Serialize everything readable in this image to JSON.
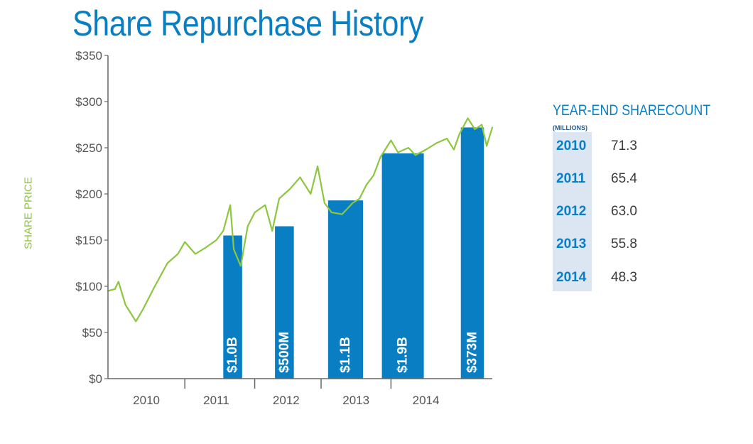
{
  "title": "Share Repurchase History",
  "y_axis_label": "SHARE PRICE",
  "colors": {
    "title": "#0a7ec2",
    "bar": "#0a7ec2",
    "line": "#8dc63f",
    "axis": "#666666",
    "panel_bg": "#dbe6f2"
  },
  "chart_data": {
    "type": "bar+line",
    "title": "Share Repurchase History",
    "ylabel": "SHARE PRICE",
    "ylim": [
      0,
      350
    ],
    "yticks": [
      "$0",
      "$50",
      "$100",
      "$150",
      "$200",
      "$250",
      "$300",
      "$350"
    ],
    "ytick_values": [
      0,
      50,
      100,
      150,
      200,
      250,
      300,
      350
    ],
    "xlim": [
      2009.45,
      2014.95
    ],
    "x_tick_labels": [
      "2010",
      "2011",
      "2012",
      "2013",
      "2014"
    ],
    "x_label_positions": [
      2010.0,
      2011.0,
      2012.0,
      2013.0,
      2014.0
    ],
    "x_dividers": [
      2010.55,
      2011.55,
      2012.5,
      2013.5
    ],
    "bars": [
      {
        "label": "$1.0B",
        "x_start": 2011.1,
        "x_end": 2011.37,
        "value": 155
      },
      {
        "label": "$500M",
        "x_start": 2011.84,
        "x_end": 2012.11,
        "value": 165
      },
      {
        "label": "$1.1B",
        "x_start": 2012.6,
        "x_end": 2013.1,
        "value": 193
      },
      {
        "label": "$1.9B",
        "x_start": 2013.37,
        "x_end": 2013.97,
        "value": 244
      },
      {
        "label": "$373M",
        "x_start": 2014.5,
        "x_end": 2014.83,
        "value": 272
      }
    ],
    "series": [
      {
        "name": "Share price",
        "x": [
          2009.45,
          2009.55,
          2009.6,
          2009.7,
          2009.85,
          2009.95,
          2010.1,
          2010.3,
          2010.45,
          2010.55,
          2010.7,
          2010.85,
          2011.0,
          2011.1,
          2011.2,
          2011.25,
          2011.35,
          2011.45,
          2011.55,
          2011.7,
          2011.8,
          2011.9,
          2012.05,
          2012.2,
          2012.35,
          2012.45,
          2012.55,
          2012.65,
          2012.8,
          2012.95,
          2013.05,
          2013.15,
          2013.25,
          2013.35,
          2013.5,
          2013.6,
          2013.75,
          2013.85,
          2014.0,
          2014.15,
          2014.3,
          2014.4,
          2014.48,
          2014.6,
          2014.7,
          2014.8,
          2014.87,
          2014.95
        ],
        "y": [
          95,
          97,
          105,
          80,
          62,
          75,
          97,
          125,
          135,
          148,
          135,
          142,
          150,
          160,
          188,
          140,
          122,
          165,
          180,
          188,
          160,
          195,
          205,
          218,
          200,
          230,
          190,
          180,
          178,
          190,
          195,
          210,
          220,
          240,
          258,
          245,
          250,
          242,
          248,
          255,
          260,
          248,
          265,
          282,
          270,
          275,
          252,
          272
        ]
      }
    ]
  },
  "panel": {
    "title": "YEAR-END SHARECOUNT",
    "subtitle": "(MILLIONS)",
    "rows": [
      {
        "year": "2010",
        "value": "71.3"
      },
      {
        "year": "2011",
        "value": "65.4"
      },
      {
        "year": "2012",
        "value": "63.0"
      },
      {
        "year": "2013",
        "value": "55.8"
      },
      {
        "year": "2014",
        "value": "48.3"
      }
    ]
  }
}
